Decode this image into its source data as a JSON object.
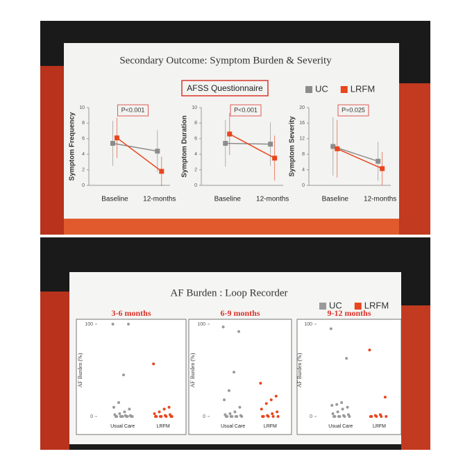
{
  "slides": [
    {
      "title": "Secondary Outcome: Symptom Burden & Severity",
      "subtitle": "AFSS Questionnaire"
    },
    {
      "title": "AF Burden : Loop Recorder"
    }
  ],
  "chart_data": [
    {
      "type": "line",
      "ylabel": "Symptom Frequency",
      "annotation": "P<0.001",
      "categories": [
        "Baseline",
        "12-months"
      ],
      "ylim": [
        0,
        10
      ],
      "yticks": [
        0,
        2,
        4,
        6,
        8,
        10
      ],
      "series": [
        {
          "name": "UC",
          "color": "#8c8c8c",
          "values": [
            5.4,
            4.4
          ],
          "errors": [
            2.9,
            2.7
          ]
        },
        {
          "name": "LRFM",
          "color": "#e8461e",
          "values": [
            6.1,
            1.8
          ],
          "errors": [
            2.6,
            1.9
          ]
        }
      ]
    },
    {
      "type": "line",
      "ylabel": "Symptom Duration",
      "annotation": "P<0.001",
      "categories": [
        "Baseline",
        "12-months"
      ],
      "ylim": [
        0,
        10
      ],
      "yticks": [
        0,
        2,
        4,
        6,
        8,
        10
      ],
      "series": [
        {
          "name": "UC",
          "color": "#8c8c8c",
          "values": [
            5.4,
            5.3
          ],
          "errors": [
            3.0,
            2.8
          ]
        },
        {
          "name": "LRFM",
          "color": "#e8461e",
          "values": [
            6.6,
            3.5
          ],
          "errors": [
            2.7,
            2.9
          ]
        }
      ]
    },
    {
      "type": "line",
      "ylabel": "Symptom Severity",
      "annotation": "P=0.025",
      "categories": [
        "Baseline",
        "12-months"
      ],
      "ylim": [
        0,
        20
      ],
      "yticks": [
        0,
        4,
        8,
        12,
        16,
        20
      ],
      "series": [
        {
          "name": "UC",
          "color": "#8c8c8c",
          "values": [
            10,
            6.2
          ],
          "errors": [
            7.5,
            5.0
          ]
        },
        {
          "name": "LRFM",
          "color": "#e8461e",
          "values": [
            9.4,
            4.3
          ],
          "errors": [
            7.4,
            4.3
          ]
        }
      ]
    },
    {
      "type": "strip",
      "title": "3-6 months",
      "ylabel": "AF Burden (%)",
      "categories": [
        "Usual Care",
        "LRFM"
      ],
      "ylim": [
        0,
        100
      ],
      "yticks": [
        0,
        100
      ],
      "series": [
        {
          "name": "UC",
          "color": "#9a9a9a",
          "values": [
            100,
            100,
            45,
            15,
            10,
            8,
            5,
            3,
            2,
            1,
            1,
            0,
            0,
            0,
            0,
            0,
            0,
            0,
            0,
            0
          ]
        },
        {
          "name": "LRFM",
          "color": "#e8461e",
          "values": [
            57,
            10,
            8,
            5,
            3,
            2,
            1,
            0,
            0,
            0,
            0,
            0,
            0,
            0
          ]
        }
      ]
    },
    {
      "type": "strip",
      "title": "6-9 months",
      "ylabel": "AF Burden (%)",
      "categories": [
        "Usual Care",
        "LRFM"
      ],
      "ylim": [
        0,
        100
      ],
      "yticks": [
        0,
        100
      ],
      "series": [
        {
          "name": "UC",
          "color": "#9a9a9a",
          "values": [
            97,
            92,
            48,
            28,
            18,
            10,
            5,
            3,
            2,
            1,
            0,
            0,
            0,
            0,
            0,
            0,
            0
          ]
        },
        {
          "name": "LRFM",
          "color": "#e8461e",
          "values": [
            36,
            22,
            18,
            14,
            8,
            5,
            3,
            1,
            0,
            0,
            0,
            0,
            0
          ]
        }
      ]
    },
    {
      "type": "strip",
      "title": "9-12 months",
      "ylabel": "AF Burden (%)",
      "categories": [
        "Usual Care",
        "LRFM"
      ],
      "ylim": [
        0,
        100
      ],
      "yticks": [
        0,
        100
      ],
      "series": [
        {
          "name": "UC",
          "color": "#9a9a9a",
          "values": [
            95,
            63,
            15,
            13,
            12,
            10,
            8,
            5,
            3,
            2,
            1,
            0,
            0,
            0,
            0,
            0,
            0
          ]
        },
        {
          "name": "LRFM",
          "color": "#e8461e",
          "values": [
            72,
            21,
            2,
            1,
            0,
            0,
            0,
            0,
            0
          ]
        }
      ]
    }
  ]
}
